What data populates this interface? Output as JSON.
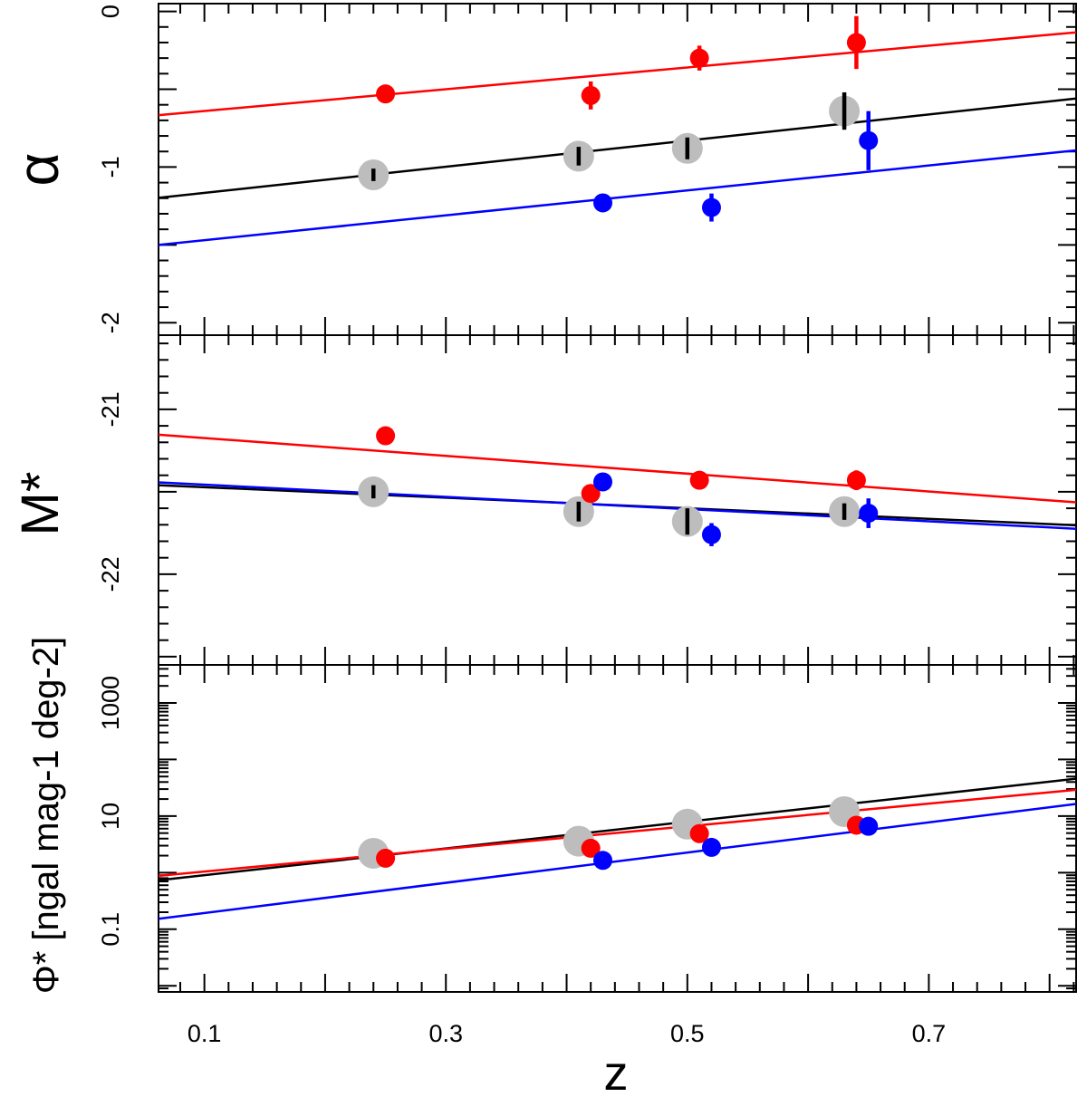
{
  "chart_data": {
    "type": "scatter",
    "layout": "three vertically stacked panels sharing the x axis",
    "xlabel": "z",
    "xlim": [
      0.062,
      0.822
    ],
    "xticks": [
      0.1,
      0.3,
      0.5,
      0.7
    ],
    "xtick_labels": [
      "0.1",
      "0.3",
      "0.5",
      "0.7"
    ],
    "colors": {
      "all": "#000000",
      "all_marker": "#bdbdbd",
      "red": "#ff0000",
      "blue": "#0000ff"
    },
    "panels": [
      {
        "id": "alpha",
        "ylabel": "α",
        "ylim": [
          -2.08,
          0.05
        ],
        "ylog": false,
        "yticks": [
          0,
          -1,
          -2
        ],
        "ytick_labels": [
          "0",
          "-1",
          "-2"
        ],
        "series": [
          {
            "name": "all",
            "color": "#000000",
            "marker": "#bdbdbd",
            "x": [
              0.24,
              0.41,
              0.5,
              0.63
            ],
            "y": [
              -1.05,
              -0.93,
              -0.88,
              -0.64
            ],
            "err": [
              0.04,
              0.06,
              0.07,
              0.12
            ],
            "fit": {
              "slope": 0.84,
              "intercept": -1.25
            }
          },
          {
            "name": "red",
            "color": "#ff0000",
            "x": [
              0.25,
              0.42,
              0.51,
              0.64
            ],
            "y": [
              -0.53,
              -0.54,
              -0.3,
              -0.2
            ],
            "err": [
              0.03,
              0.09,
              0.08,
              0.17
            ],
            "fit": {
              "slope": 0.7,
              "intercept": -0.71
            }
          },
          {
            "name": "blue",
            "color": "#0000ff",
            "x": [
              0.43,
              0.52,
              0.65
            ],
            "y": [
              -1.23,
              -1.26,
              -0.83
            ],
            "err": [
              0.03,
              0.09,
              0.19
            ],
            "fit": {
              "slope": 0.8,
              "intercept": -1.55
            }
          }
        ]
      },
      {
        "id": "mstar",
        "ylabel": "M*",
        "ylim": [
          -22.55,
          -20.55
        ],
        "ylog": false,
        "yticks": [
          -21,
          -22
        ],
        "ytick_labels": [
          "-21",
          "-22"
        ],
        "series": [
          {
            "name": "all",
            "color": "#000000",
            "marker": "#bdbdbd",
            "x": [
              0.24,
              0.41,
              0.5,
              0.63
            ],
            "y": [
              -21.5,
              -21.62,
              -21.68,
              -21.62
            ],
            "err": [
              0.04,
              0.06,
              0.08,
              0.05
            ],
            "fit": {
              "slope": -0.32,
              "intercept": -21.44
            }
          },
          {
            "name": "red",
            "color": "#ff0000",
            "x": [
              0.25,
              0.42,
              0.51,
              0.64
            ],
            "y": [
              -21.16,
              -21.51,
              -21.43,
              -21.43
            ],
            "err": [
              0.02,
              0.05,
              0.03,
              0.06
            ],
            "fit": {
              "slope": -0.54,
              "intercept": -21.12
            }
          },
          {
            "name": "blue",
            "color": "#0000ff",
            "x": [
              0.43,
              0.52,
              0.65
            ],
            "y": [
              -21.44,
              -21.76,
              -21.63
            ],
            "err": [
              0.02,
              0.07,
              0.09
            ],
            "fit": {
              "slope": -0.37,
              "intercept": -21.42
            }
          }
        ]
      },
      {
        "id": "phi",
        "ylabel": "Φ* [ngal mag-1 deg-2]",
        "ylim": [
          0.0078,
          4700
        ],
        "ylog": true,
        "yticks": [
          1000,
          10,
          0.1
        ],
        "ytick_labels": [
          "1000",
          "10",
          "0.1"
        ],
        "series": [
          {
            "name": "all",
            "color": "#000000",
            "marker": "#bdbdbd",
            "x": [
              0.24,
              0.41,
              0.5,
              0.63
            ],
            "y": [
              2.2,
              3.6,
              7.2,
              12.0
            ],
            "fit": {
              "slope": 2.36,
              "intercept": -0.28
            }
          },
          {
            "name": "red",
            "color": "#ff0000",
            "x": [
              0.25,
              0.42,
              0.51,
              0.64
            ],
            "y": [
              1.8,
              2.7,
              4.9,
              6.9
            ],
            "fit": {
              "slope": 2.0,
              "intercept": -0.18
            }
          },
          {
            "name": "blue",
            "color": "#0000ff",
            "x": [
              0.43,
              0.52,
              0.65
            ],
            "y": [
              1.65,
              2.8,
              6.6
            ],
            "fit": {
              "slope": 2.67,
              "intercept": -0.98
            }
          }
        ]
      }
    ]
  }
}
